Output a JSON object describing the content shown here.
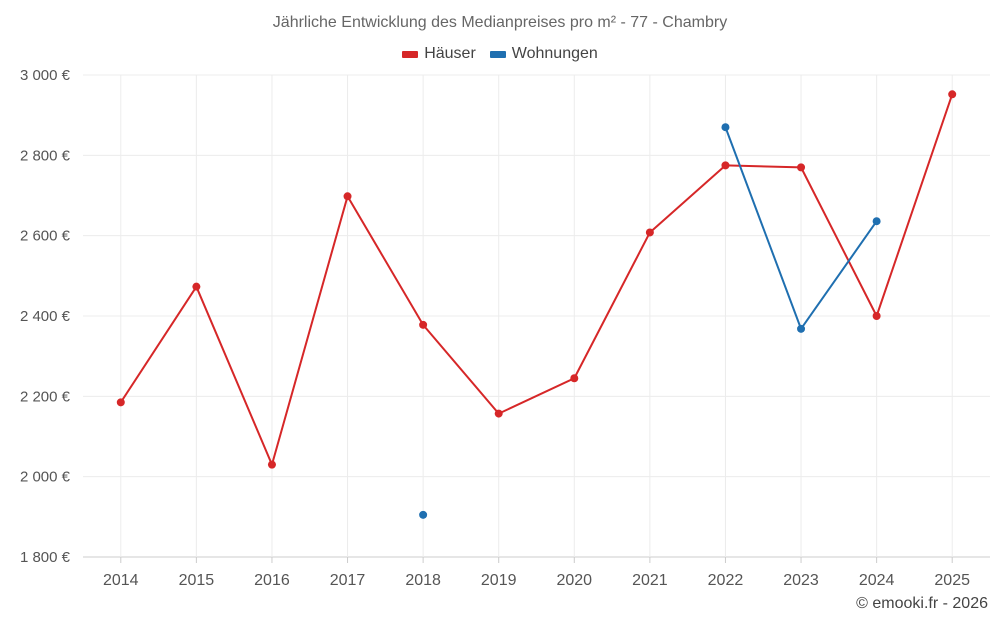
{
  "chart_data": {
    "type": "line",
    "title": "Jährliche Entwicklung des Medianpreises pro m² - 77 - Chambry",
    "categories": [
      "2014",
      "2015",
      "2016",
      "2017",
      "2018",
      "2019",
      "2020",
      "2021",
      "2022",
      "2023",
      "2024",
      "2025"
    ],
    "series": [
      {
        "name": "Häuser",
        "color": "#d62728",
        "values": [
          2185,
          2473,
          2030,
          2698,
          2378,
          2157,
          2245,
          2608,
          2775,
          2770,
          2400,
          2952
        ]
      },
      {
        "name": "Wohnungen",
        "color": "#1f6fb0",
        "values": [
          null,
          null,
          null,
          null,
          1905,
          null,
          null,
          null,
          2870,
          2368,
          2636,
          null
        ]
      }
    ],
    "y_ticks": [
      {
        "value": 1800,
        "label": "1 800 €"
      },
      {
        "value": 2000,
        "label": "2 000 €"
      },
      {
        "value": 2200,
        "label": "2 200 €"
      },
      {
        "value": 2400,
        "label": "2 400 €"
      },
      {
        "value": 2600,
        "label": "2 600 €"
      },
      {
        "value": 2800,
        "label": "2 800 €"
      },
      {
        "value": 3000,
        "label": "3 000 €"
      }
    ],
    "ylim": [
      1800,
      3000
    ],
    "xlabel": "",
    "ylabel": "",
    "grid": true,
    "legend_position": "top-center"
  },
  "credit": "© emooki.fr - 2026"
}
